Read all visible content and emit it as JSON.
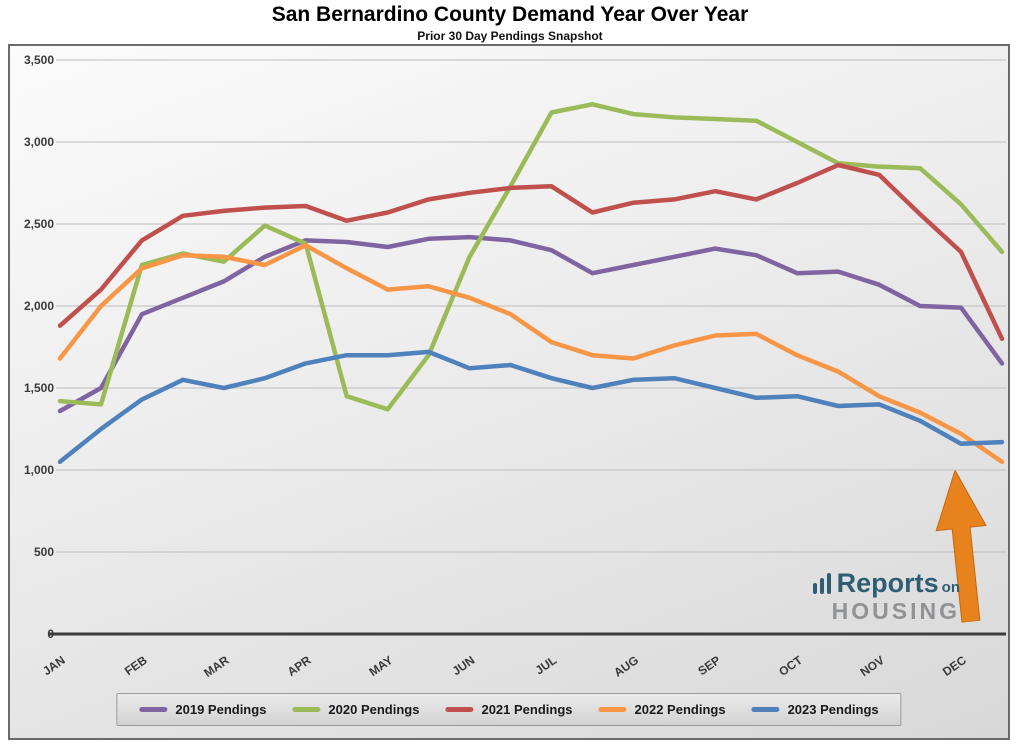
{
  "logo": {
    "reports": "Reports",
    "on": "on",
    "housing": "HOUSING"
  },
  "chart_data": {
    "type": "line",
    "title": "San Bernardino County Demand Year Over Year",
    "subtitle": "Prior 30 Day Pendings Snapshot",
    "categories": [
      "JAN",
      "FEB",
      "MAR",
      "APR",
      "MAY",
      "JUN",
      "JUL",
      "AUG",
      "SEP",
      "OCT",
      "NOV",
      "DEC"
    ],
    "points_per_month": 2,
    "ylim": [
      0,
      3500
    ],
    "ytick_step": 500,
    "grid": "horizontal",
    "legend_position": "bottom",
    "series": [
      {
        "name": "2019 Pendings",
        "color": "#8064A2",
        "values": [
          1360,
          1500,
          1950,
          2050,
          2150,
          2300,
          2400,
          2390,
          2360,
          2410,
          2420,
          2400,
          2340,
          2200,
          2250,
          2300,
          2350,
          2310,
          2200,
          2210,
          2130,
          2000,
          1990,
          1650
        ]
      },
      {
        "name": "2020 Pendings",
        "color": "#9BBB59",
        "values": [
          1420,
          1400,
          2250,
          2320,
          2270,
          2490,
          2380,
          1450,
          1370,
          1700,
          2300,
          2730,
          3180,
          3230,
          3170,
          3150,
          3140,
          3130,
          3000,
          2870,
          2850,
          2840,
          2620,
          2330
        ]
      },
      {
        "name": "2021 Pendings",
        "color": "#C0504D",
        "values": [
          1880,
          2100,
          2400,
          2550,
          2580,
          2600,
          2610,
          2520,
          2570,
          2650,
          2690,
          2720,
          2730,
          2570,
          2630,
          2650,
          2700,
          2650,
          2750,
          2860,
          2800,
          2560,
          2330,
          1800
        ]
      },
      {
        "name": "2022 Pendings",
        "color": "#F79646",
        "values": [
          1680,
          2000,
          2230,
          2310,
          2300,
          2250,
          2370,
          2230,
          2100,
          2120,
          2050,
          1950,
          1780,
          1700,
          1680,
          1760,
          1820,
          1830,
          1700,
          1600,
          1450,
          1350,
          1220,
          1050
        ]
      },
      {
        "name": "2023 Pendings",
        "color": "#4F81BD",
        "values": [
          1050,
          1250,
          1430,
          1550,
          1500,
          1560,
          1650,
          1700,
          1700,
          1720,
          1620,
          1640,
          1560,
          1500,
          1550,
          1560,
          1500,
          1440,
          1450,
          1390,
          1400,
          1300,
          1160,
          1170
        ]
      }
    ],
    "annotation": {
      "shape": "up-arrow",
      "color": "#E8821C",
      "points_to": "end of 2022/2023 series at December"
    }
  }
}
